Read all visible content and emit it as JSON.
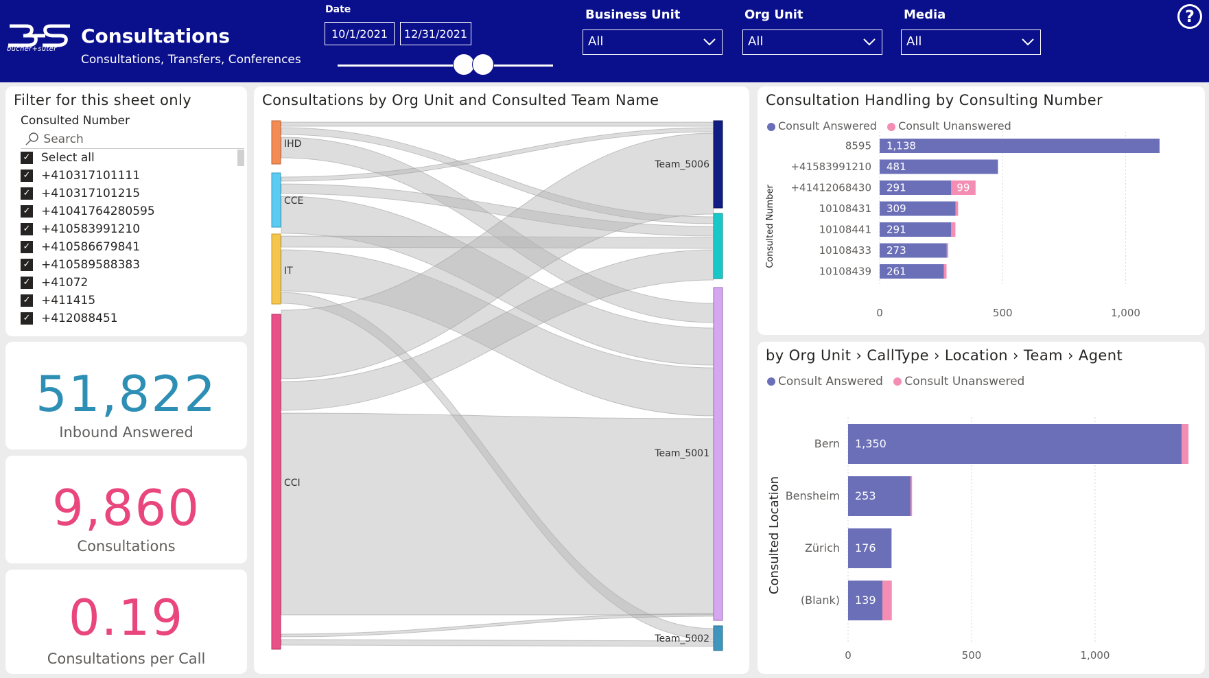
{
  "header": {
    "logo_text": "bucher+suter",
    "title": "Consultations",
    "subtitle": "Consultations, Transfers, Conferences",
    "date_label": "Date",
    "date_from": "10/1/2021",
    "date_to": "12/31/2021",
    "filters": [
      {
        "label": "Business Unit",
        "value": "All"
      },
      {
        "label": "Org Unit",
        "value": "All"
      },
      {
        "label": "Media",
        "value": "All"
      }
    ],
    "help_symbol": "?"
  },
  "slicer": {
    "title": "Filter for this sheet only",
    "field": "Consulted Number",
    "search_placeholder": "Search",
    "items": [
      "Select all",
      "+410317101111",
      "+410317101215",
      "+41041764280595",
      "+410583991210",
      "+410586679841",
      "+410589588383",
      "+41072",
      "+411415",
      "+412088451"
    ]
  },
  "kpis": [
    {
      "value": "51,822",
      "label": "Inbound Answered",
      "color": "#2e8fb5"
    },
    {
      "value": "9,860",
      "label": "Consultations",
      "color": "#e8467c"
    },
    {
      "value": "0.19",
      "label": "Consultations per Call",
      "color": "#e8467c"
    }
  ],
  "sankey": {
    "title": "Consultations by Org Unit and Consulted Team Name",
    "sources": [
      {
        "name": "IHD",
        "color": "#f28b54"
      },
      {
        "name": "CCE",
        "color": "#5ccbf2"
      },
      {
        "name": "IT",
        "color": "#f5c54c"
      },
      {
        "name": "CCI",
        "color": "#ea4f87"
      }
    ],
    "targets": [
      {
        "name": "Team_5006",
        "color": "#101d82"
      },
      {
        "name": "",
        "color": "#18c8c8"
      },
      {
        "name": "Team_5001",
        "color": "#d5a7ee"
      },
      {
        "name": "Team_5002",
        "color": "#3f95bd"
      }
    ]
  },
  "chart_data": [
    {
      "type": "bar",
      "orientation": "horizontal",
      "stacked": true,
      "title": "Consultation Handling by Consulting Number",
      "ylabel": "Consulted Number",
      "categories": [
        "8595",
        "+41583991210",
        "+41412068430",
        "10108431",
        "10108441",
        "10108433",
        "10108439"
      ],
      "series": [
        {
          "name": "Consult Answered",
          "color": "#6b6fb8",
          "values": [
            1138,
            481,
            291,
            309,
            291,
            273,
            261
          ]
        },
        {
          "name": "Consult Unanswered",
          "color": "#f48db3",
          "values": [
            0,
            0,
            99,
            10,
            17,
            6,
            11
          ]
        }
      ],
      "data_labels": [
        [
          "1,138",
          "481",
          "291",
          "309",
          "291",
          "273",
          "261"
        ],
        [
          "",
          "",
          "99",
          "",
          "",
          "",
          ""
        ]
      ],
      "xlim": [
        0,
        1300
      ],
      "ticks": [
        0,
        500,
        1000
      ],
      "tick_labels": [
        "0",
        "500",
        "1,000"
      ]
    },
    {
      "type": "bar",
      "orientation": "horizontal",
      "stacked": true,
      "title": "by Org Unit › CallType › Location › Team › Agent",
      "ylabel": "Consulted Location",
      "categories": [
        "Bern",
        "Bensheim",
        "Zürich",
        "(Blank)"
      ],
      "series": [
        {
          "name": "Consult Answered",
          "color": "#6b6fb8",
          "values": [
            1350,
            253,
            176,
            139
          ]
        },
        {
          "name": "Consult Unanswered",
          "color": "#f48db3",
          "values": [
            28,
            6,
            0,
            38
          ]
        }
      ],
      "data_labels": [
        [
          "1,350",
          "253",
          "176",
          "139"
        ],
        [
          "",
          "",
          "",
          ""
        ]
      ],
      "xlim": [
        0,
        1400
      ],
      "ticks": [
        0,
        500,
        1000
      ],
      "tick_labels": [
        "0",
        "500",
        "1,000"
      ]
    }
  ]
}
